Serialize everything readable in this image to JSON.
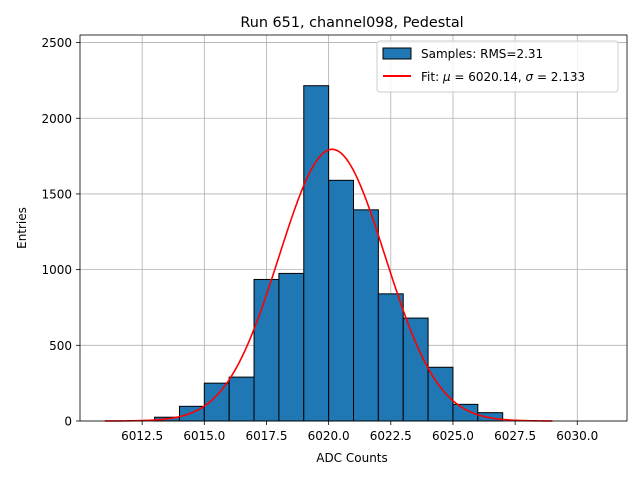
{
  "chart_data": {
    "type": "bar",
    "title": "Run 651, channel098, Pedestal",
    "xlabel": "ADC Counts",
    "ylabel": "Entries",
    "xlim": [
      6010.0,
      6032.0
    ],
    "ylim": [
      0,
      2550
    ],
    "xticks": [
      6012.5,
      6015.0,
      6017.5,
      6020.0,
      6022.5,
      6025.0,
      6027.5,
      6030.0
    ],
    "xtick_labels": [
      "6012.5",
      "6015.0",
      "6017.5",
      "6020.0",
      "6022.5",
      "6025.0",
      "6027.5",
      "6030.0"
    ],
    "yticks": [
      0,
      500,
      1000,
      1500,
      2000,
      2500
    ],
    "ytick_labels": [
      "0",
      "500",
      "1000",
      "1500",
      "2000",
      "2500"
    ],
    "grid": true,
    "legend_position": "top-right",
    "histogram": {
      "name": "Samples: RMS=2.31",
      "color": "#1f77b4",
      "edge_color": "#000000",
      "bins": [
        {
          "left": 6013,
          "right": 6014,
          "count": 25
        },
        {
          "left": 6014,
          "right": 6015,
          "count": 97
        },
        {
          "left": 6015,
          "right": 6016,
          "count": 250
        },
        {
          "left": 6016,
          "right": 6017,
          "count": 290
        },
        {
          "left": 6017,
          "right": 6018,
          "count": 935
        },
        {
          "left": 6018,
          "right": 6019,
          "count": 975
        },
        {
          "left": 6019,
          "right": 6020,
          "count": 2215
        },
        {
          "left": 6020,
          "right": 6021,
          "count": 1590
        },
        {
          "left": 6021,
          "right": 6022,
          "count": 1395
        },
        {
          "left": 6022,
          "right": 6023,
          "count": 840
        },
        {
          "left": 6023,
          "right": 6024,
          "count": 680
        },
        {
          "left": 6024,
          "right": 6025,
          "count": 355
        },
        {
          "left": 6025,
          "right": 6026,
          "count": 110
        },
        {
          "left": 6026,
          "right": 6027,
          "count": 55
        }
      ]
    },
    "fit": {
      "name": "Fit: μ = 6020.14, σ = 2.133",
      "label_prefix": "Fit: ",
      "label_mu": "μ",
      "label_mu_value": " = 6020.14, ",
      "label_sigma": "σ",
      "label_sigma_value": " = 2.133",
      "color": "#ff0000",
      "mu": 6020.14,
      "sigma": 2.133,
      "amplitude": 1795,
      "x_range": [
        6011,
        6029
      ]
    }
  }
}
